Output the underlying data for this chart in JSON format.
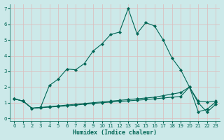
{
  "xlabel": "Humidex (Indice chaleur)",
  "background_color": "#cce9e9",
  "grid_color": "#b8d8d8",
  "line_color": "#006655",
  "xlim": [
    -0.5,
    23.5
  ],
  "ylim": [
    -0.15,
    7.3
  ],
  "xticks": [
    0,
    1,
    2,
    3,
    4,
    5,
    6,
    7,
    8,
    9,
    10,
    11,
    12,
    13,
    14,
    15,
    16,
    17,
    18,
    19,
    20,
    21,
    22,
    23
  ],
  "yticks": [
    0,
    1,
    2,
    3,
    4,
    5,
    6,
    7
  ],
  "series1_x": [
    0,
    1,
    2,
    3,
    4,
    5,
    6,
    7,
    8,
    9,
    10,
    11,
    12,
    13,
    14,
    15,
    16,
    17,
    18,
    19,
    20,
    21,
    22,
    23
  ],
  "series1_y": [
    1.25,
    1.1,
    0.65,
    0.7,
    2.1,
    2.5,
    3.15,
    3.1,
    3.5,
    4.3,
    4.75,
    5.35,
    5.5,
    7.0,
    5.4,
    6.1,
    5.9,
    5.0,
    3.85,
    3.1,
    2.0,
    1.0,
    0.4,
    0.9
  ],
  "series2_x": [
    0,
    1,
    2,
    3,
    4,
    5,
    6,
    7,
    8,
    9,
    10,
    11,
    12,
    13,
    14,
    15,
    16,
    17,
    18,
    19,
    20,
    21,
    22,
    23
  ],
  "series2_y": [
    1.25,
    1.1,
    0.65,
    0.7,
    0.75,
    0.8,
    0.85,
    0.9,
    0.95,
    1.0,
    1.05,
    1.1,
    1.15,
    1.2,
    1.25,
    1.3,
    1.35,
    1.45,
    1.55,
    1.65,
    2.0,
    1.1,
    1.05,
    1.1
  ],
  "series3_x": [
    0,
    1,
    2,
    3,
    4,
    5,
    6,
    7,
    8,
    9,
    10,
    11,
    12,
    13,
    14,
    15,
    16,
    17,
    18,
    19,
    20,
    21,
    22,
    23
  ],
  "series3_y": [
    1.25,
    1.1,
    0.65,
    0.68,
    0.72,
    0.76,
    0.8,
    0.85,
    0.9,
    0.95,
    1.0,
    1.04,
    1.08,
    1.12,
    1.16,
    1.2,
    1.25,
    1.3,
    1.35,
    1.4,
    2.0,
    0.42,
    0.58,
    1.05
  ]
}
